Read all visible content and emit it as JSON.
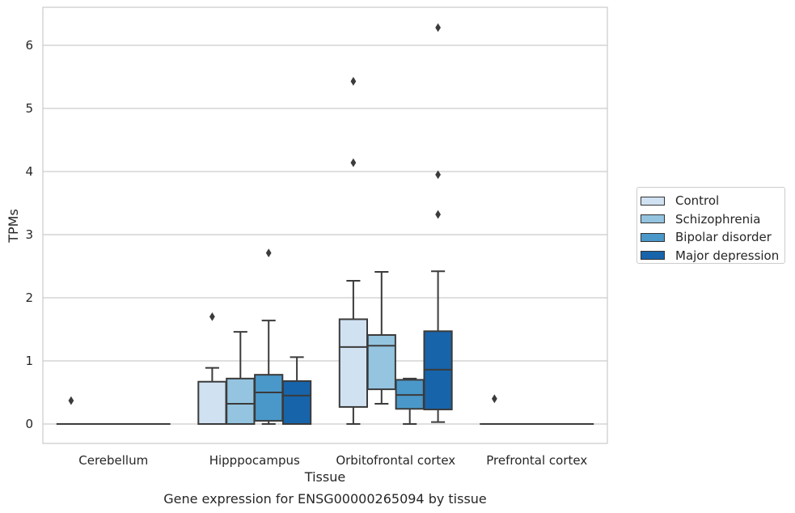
{
  "chart_data": {
    "type": "box",
    "title": "Gene expression for ENSG00000265094 by tissue",
    "xlabel": "Tissue",
    "ylabel": "TPMs",
    "ylim": [
      -0.3,
      6.6
    ],
    "yticks": [
      0,
      1,
      2,
      3,
      4,
      5,
      6
    ],
    "grid": true,
    "legend_position": "right",
    "categories": [
      "Cerebellum",
      "Hipppocampus",
      "Orbitofrontal cortex",
      "Prefrontal cortex"
    ],
    "series": [
      {
        "name": "Control",
        "color": "#d0e1f2",
        "boxes": [
          {
            "q1": 0,
            "median": 0,
            "q3": 0,
            "whislo": 0,
            "whishi": 0,
            "fliers": [
              0.37
            ]
          },
          {
            "q1": 0,
            "median": 0,
            "q3": 0.67,
            "whislo": 0,
            "whishi": 0.89,
            "fliers": [
              1.7
            ]
          },
          {
            "q1": 0.27,
            "median": 1.22,
            "q3": 1.66,
            "whislo": 0,
            "whishi": 2.27,
            "fliers": [
              4.14,
              5.43
            ]
          },
          {
            "q1": 0,
            "median": 0,
            "q3": 0,
            "whislo": 0,
            "whishi": 0,
            "fliers": [
              0.4
            ]
          }
        ]
      },
      {
        "name": "Schizophrenia",
        "color": "#94c4df",
        "boxes": [
          {
            "q1": 0,
            "median": 0,
            "q3": 0,
            "whislo": 0,
            "whishi": 0,
            "fliers": []
          },
          {
            "q1": 0,
            "median": 0.32,
            "q3": 0.72,
            "whislo": 0,
            "whishi": 1.46,
            "fliers": []
          },
          {
            "q1": 0.55,
            "median": 1.24,
            "q3": 1.41,
            "whislo": 0.32,
            "whishi": 2.41,
            "fliers": []
          },
          {
            "q1": 0,
            "median": 0,
            "q3": 0,
            "whislo": 0,
            "whishi": 0,
            "fliers": []
          }
        ]
      },
      {
        "name": "Bipolar disorder",
        "color": "#4a98c9",
        "boxes": [
          {
            "q1": 0,
            "median": 0,
            "q3": 0,
            "whislo": 0,
            "whishi": 0,
            "fliers": []
          },
          {
            "q1": 0.05,
            "median": 0.5,
            "q3": 0.78,
            "whislo": 0,
            "whishi": 1.64,
            "fliers": [
              2.71
            ]
          },
          {
            "q1": 0.24,
            "median": 0.46,
            "q3": 0.7,
            "whislo": 0,
            "whishi": 0.72,
            "fliers": []
          },
          {
            "q1": 0,
            "median": 0,
            "q3": 0,
            "whislo": 0,
            "whishi": 0,
            "fliers": []
          }
        ]
      },
      {
        "name": "Major depression",
        "color": "#1764ab",
        "boxes": [
          {
            "q1": 0,
            "median": 0,
            "q3": 0,
            "whislo": 0,
            "whishi": 0,
            "fliers": []
          },
          {
            "q1": 0,
            "median": 0.45,
            "q3": 0.68,
            "whislo": 0,
            "whishi": 1.06,
            "fliers": []
          },
          {
            "q1": 0.23,
            "median": 0.86,
            "q3": 1.47,
            "whislo": 0.03,
            "whishi": 2.42,
            "fliers": [
              3.32,
              3.95,
              6.28
            ]
          },
          {
            "q1": 0,
            "median": 0,
            "q3": 0,
            "whislo": 0,
            "whishi": 0,
            "fliers": []
          }
        ]
      }
    ]
  }
}
